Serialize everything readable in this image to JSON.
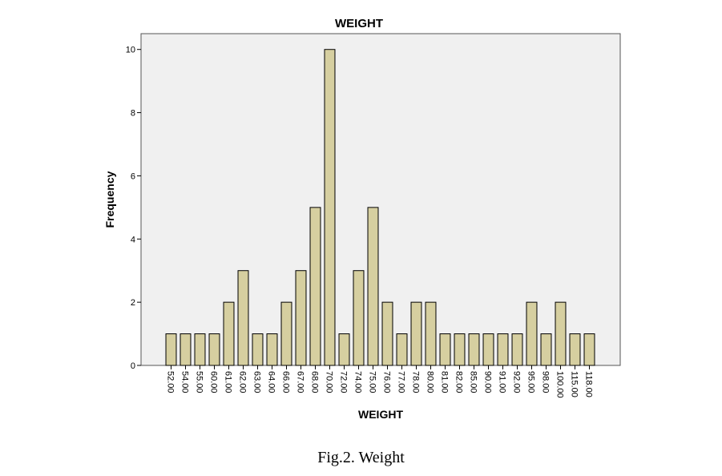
{
  "chart_data": {
    "type": "bar",
    "title": "WEIGHT",
    "xlabel": "WEIGHT",
    "ylabel": "Frequency",
    "categories": [
      "52.00",
      "54.00",
      "55.00",
      "60.00",
      "61.00",
      "62.00",
      "63.00",
      "64.00",
      "66.00",
      "67.00",
      "68.00",
      "70.00",
      "72.00",
      "74.00",
      "75.00",
      "76.00",
      "77.00",
      "78.00",
      "80.00",
      "81.00",
      "82.00",
      "85.00",
      "90.00",
      "91.00",
      "92.00",
      "95.00",
      "98.00",
      "100.00",
      "115.00",
      "118.00"
    ],
    "values": [
      1,
      1,
      1,
      1,
      2,
      3,
      1,
      1,
      2,
      3,
      5,
      10,
      1,
      3,
      5,
      2,
      1,
      2,
      2,
      1,
      1,
      1,
      1,
      1,
      1,
      2,
      1,
      2,
      1,
      1
    ],
    "ylim": [
      0,
      10.5
    ],
    "yticks": [
      0,
      2,
      4,
      6,
      8,
      10
    ],
    "grid": false,
    "colors": {
      "bar_fill": "#d6cfa0",
      "bar_stroke": "#000000",
      "plot_bg": "#f0f0f0"
    }
  },
  "caption": "Fig.2. Weight"
}
